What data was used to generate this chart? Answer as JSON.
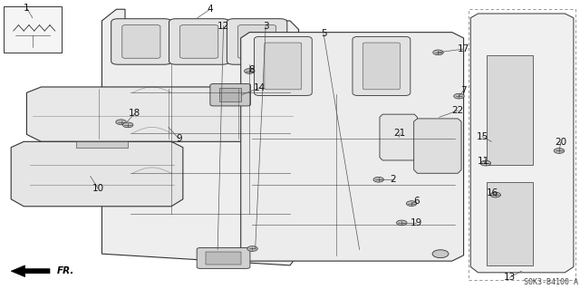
{
  "background_color": "#ffffff",
  "diagram_code": "S0K3-B4100 A",
  "line_color": "#333333",
  "text_color": "#111111",
  "font_size_labels": 7.5
}
